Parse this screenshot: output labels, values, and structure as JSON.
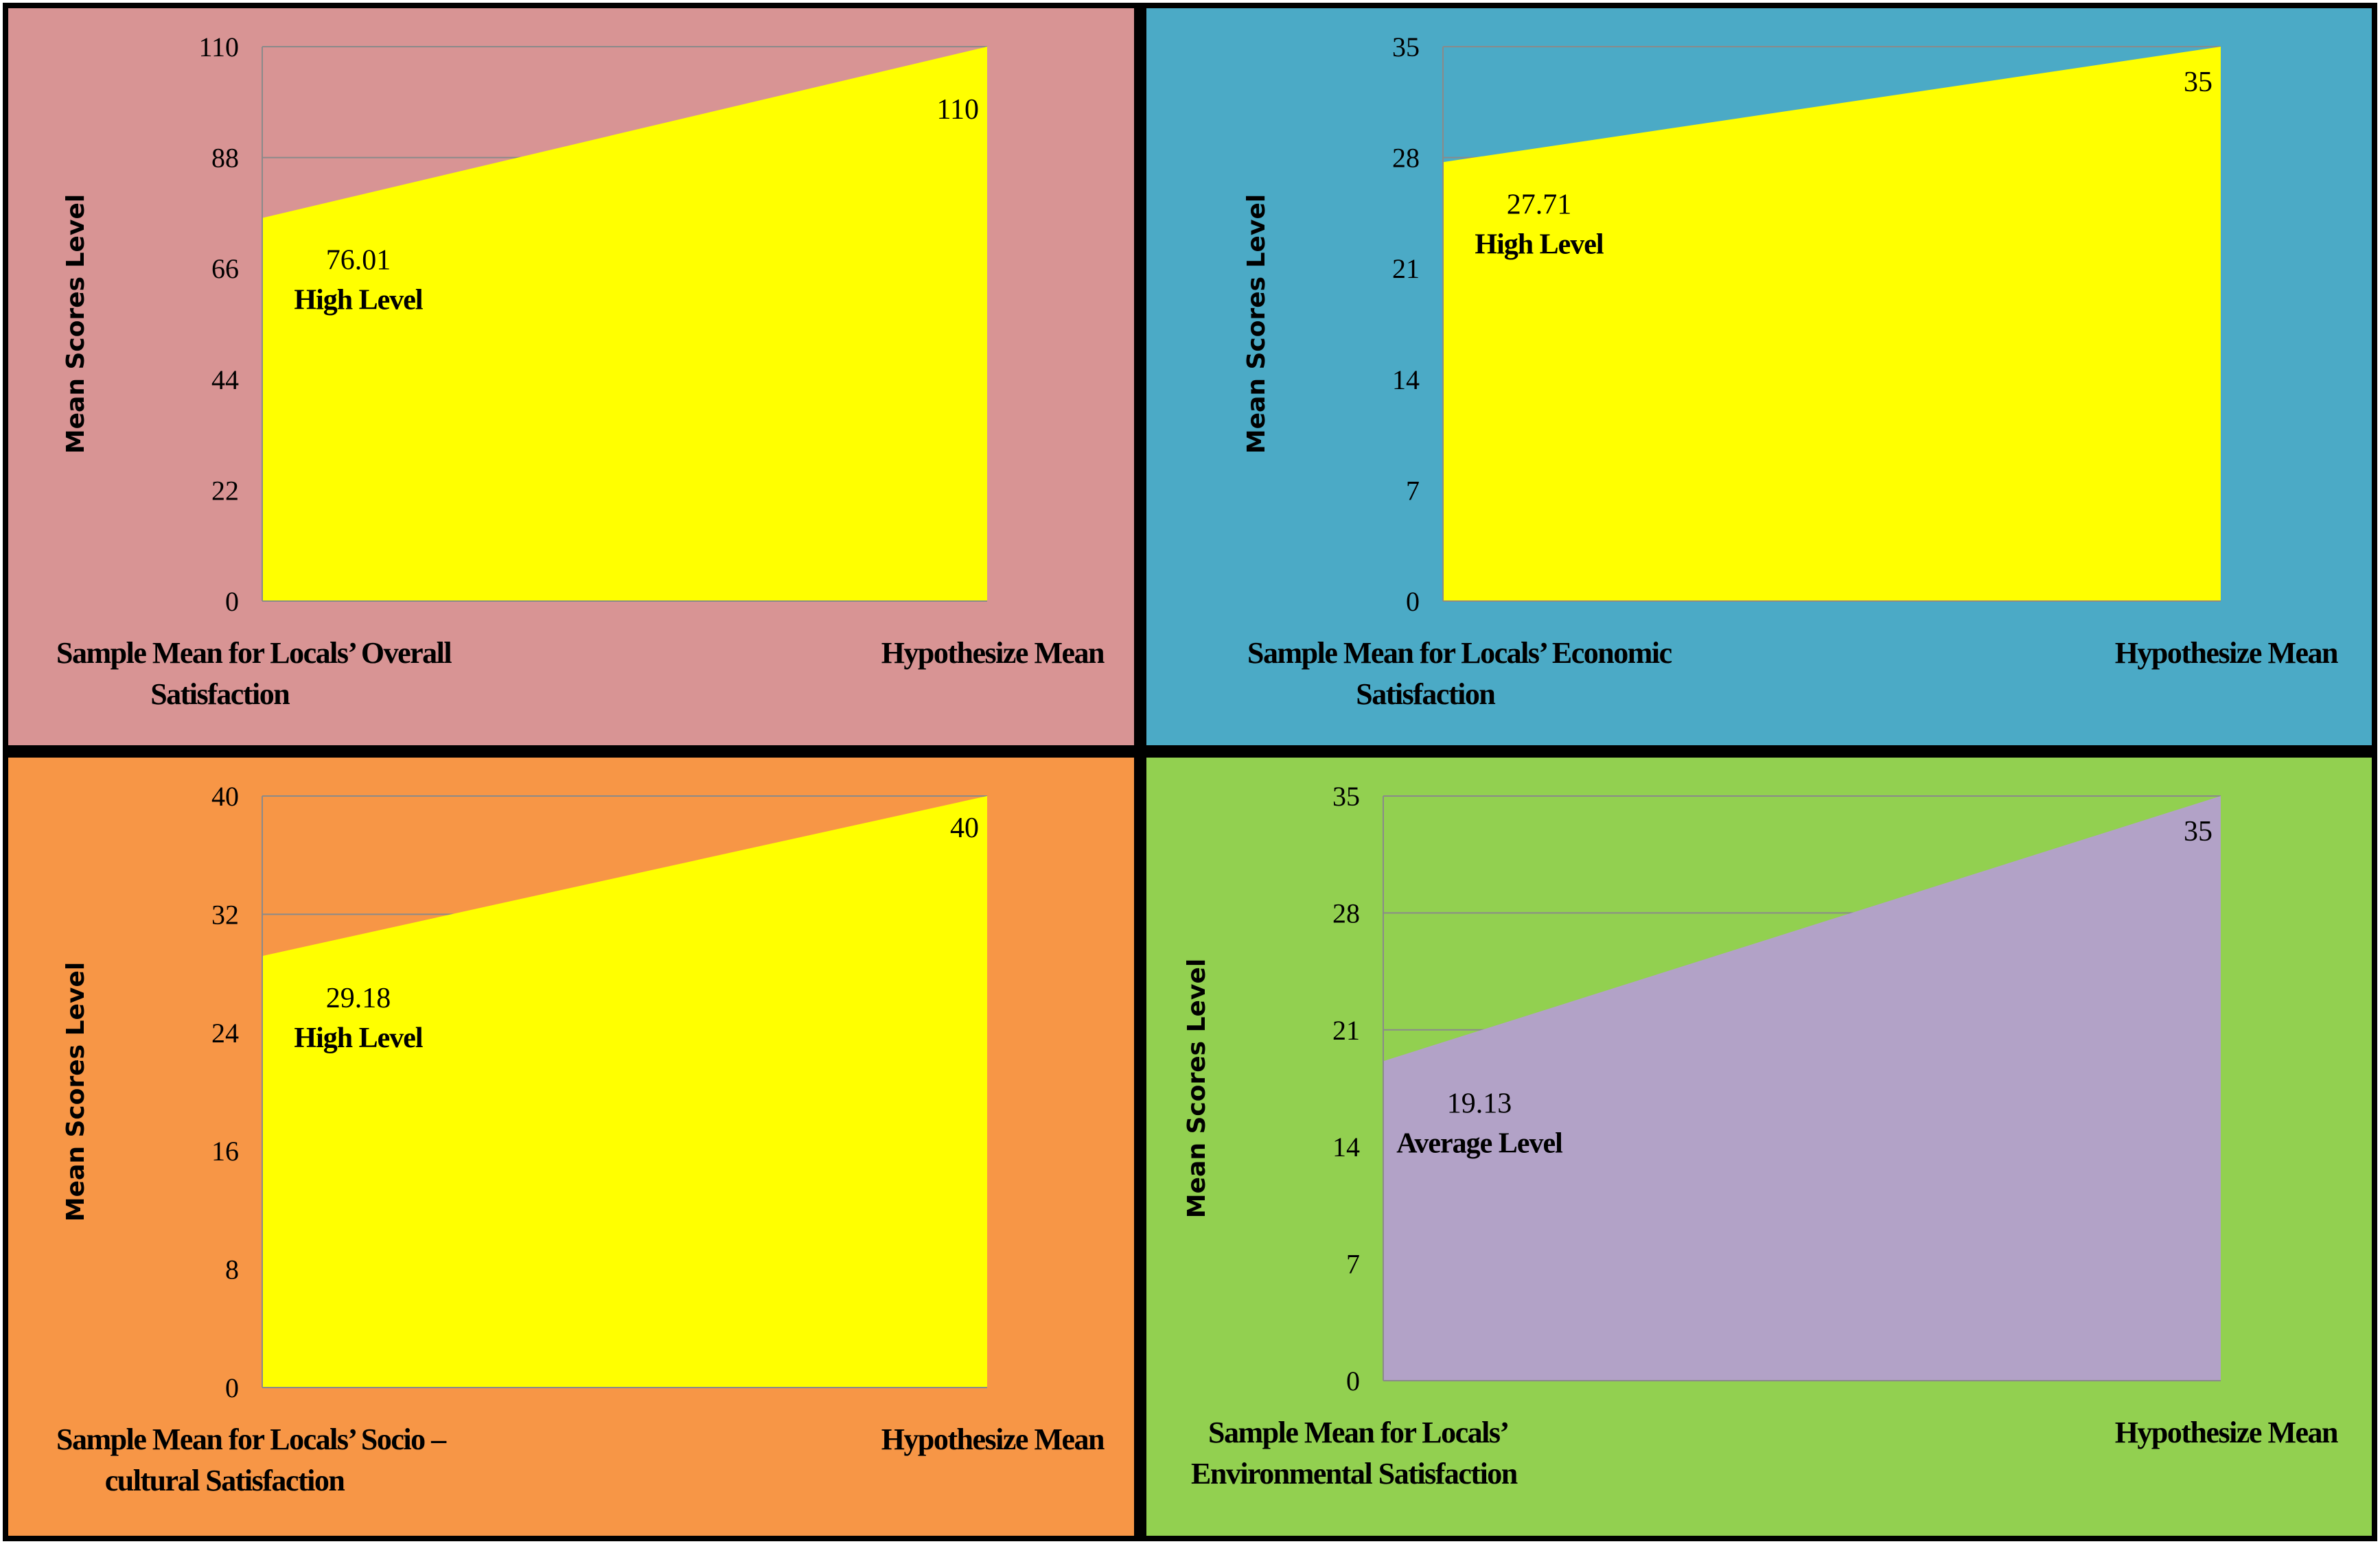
{
  "chart_data": [
    {
      "type": "area",
      "background": "#d89494",
      "fill": "#ffff00",
      "ylabel": "Mean Scores Level",
      "ylim": [
        0,
        110
      ],
      "yticks": [
        0,
        22,
        44,
        66,
        88,
        110
      ],
      "grid": true,
      "categories": [
        [
          "Sample Mean for Locals’ Overall",
          "Satisfaction"
        ],
        [
          "Hypothesize Mean"
        ]
      ],
      "values": [
        76.01,
        110
      ],
      "value_labels": [
        "76.01",
        "110"
      ],
      "level_label": "High Level"
    },
    {
      "type": "area",
      "background": "#4baac6",
      "fill": "#ffff00",
      "ylabel": "Mean Scores Level",
      "ylim": [
        0,
        35
      ],
      "yticks": [
        0,
        7,
        14,
        21,
        28,
        35
      ],
      "grid": true,
      "categories": [
        [
          "Sample Mean for Locals’ Economic",
          "Satisfaction"
        ],
        [
          "Hypothesize Mean"
        ]
      ],
      "values": [
        27.71,
        35
      ],
      "value_labels": [
        "27.71",
        "35"
      ],
      "level_label": "High Level"
    },
    {
      "type": "area",
      "background": "#f79646",
      "fill": "#ffff00",
      "ylabel": "Mean Scores Level",
      "ylim": [
        0,
        40
      ],
      "yticks": [
        0,
        8,
        16,
        24,
        32,
        40
      ],
      "grid": true,
      "categories": [
        [
          "Sample Mean for Locals’ Socio –",
          "cultural Satisfaction"
        ],
        [
          "Hypothesize Mean"
        ]
      ],
      "values": [
        29.18,
        40
      ],
      "value_labels": [
        "29.18",
        "40"
      ],
      "level_label": "High Level"
    },
    {
      "type": "area",
      "background": "#92d050",
      "fill": "#b2a2c7",
      "ylabel": "Mean Scores Level",
      "ylim": [
        0,
        35
      ],
      "yticks": [
        0,
        7,
        14,
        21,
        28,
        35
      ],
      "grid": true,
      "categories": [
        [
          "Sample Mean for Locals’",
          "Environmental Satisfaction"
        ],
        [
          "Hypothesize Mean"
        ]
      ],
      "values": [
        19.13,
        35
      ],
      "value_labels": [
        "19.13",
        "35"
      ],
      "level_label": "Average Level"
    }
  ]
}
